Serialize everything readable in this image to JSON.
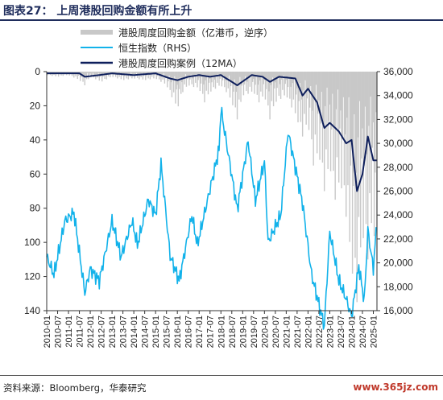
{
  "figure": {
    "title": "图表27：  上周港股回购金额有所上升",
    "source": "资料来源：Bloomberg，华泰研究",
    "watermark": "www.365jz.com"
  },
  "colors": {
    "repurchase_amount": "#c8c8c8",
    "hsi": "#12b2ea",
    "repurchase_12ma": "#0e1f5c",
    "title": "#1f2d5c"
  },
  "chart_data": {
    "type": "line",
    "title": "",
    "legend_position": "top-center",
    "grid": false,
    "x_range": [
      "2010-01",
      "2025-03"
    ],
    "x_tick_labels": [
      "2010-01",
      "2010-07",
      "2011-01",
      "2011-07",
      "2012-01",
      "2012-07",
      "2013-01",
      "2013-07",
      "2014-01",
      "2014-07",
      "2015-01",
      "2015-07",
      "2016-01",
      "2016-07",
      "2017-01",
      "2017-07",
      "2018-01",
      "2018-07",
      "2019-01",
      "2019-07",
      "2020-01",
      "2020-07",
      "2021-01",
      "2021-07",
      "2022-01",
      "2022-07",
      "2023-01",
      "2023-07",
      "2024-01",
      "2024-07",
      "2025-01"
    ],
    "left_axis": {
      "ylim": [
        0,
        140
      ],
      "inverted": true,
      "ticks": [
        0,
        20,
        40,
        60,
        80,
        100,
        120,
        140
      ],
      "tick_labels": [
        "0",
        "20",
        "40",
        "60",
        "80",
        "100",
        "120",
        "140"
      ]
    },
    "right_axis": {
      "ylim": [
        16000,
        36000
      ],
      "ticks": [
        16000,
        18000,
        20000,
        22000,
        24000,
        26000,
        28000,
        30000,
        32000,
        34000,
        36000
      ],
      "tick_labels": [
        "16,000",
        "18,000",
        "20,000",
        "22,000",
        "24,000",
        "26,000",
        "28,000",
        "30,000",
        "32,000",
        "34,000",
        "36,000"
      ]
    },
    "series": [
      {
        "name": "港股周度回购金额（亿港币，逆序）",
        "axis": "left",
        "style": "area-bars",
        "points": [
          [
            "2010-01",
            2
          ],
          [
            "2010-07",
            3
          ],
          [
            "2011-01",
            2
          ],
          [
            "2011-07",
            5
          ],
          [
            "2011-10",
            8
          ],
          [
            "2012-01",
            3
          ],
          [
            "2012-07",
            6
          ],
          [
            "2013-01",
            3
          ],
          [
            "2013-07",
            5
          ],
          [
            "2014-01",
            4
          ],
          [
            "2014-07",
            5
          ],
          [
            "2015-01",
            4
          ],
          [
            "2015-07",
            8
          ],
          [
            "2015-10",
            15
          ],
          [
            "2016-01",
            22
          ],
          [
            "2016-04",
            12
          ],
          [
            "2016-07",
            8
          ],
          [
            "2017-01",
            10
          ],
          [
            "2017-04",
            18
          ],
          [
            "2017-07",
            12
          ],
          [
            "2018-01",
            8
          ],
          [
            "2018-04",
            12
          ],
          [
            "2018-07",
            18
          ],
          [
            "2018-10",
            28
          ],
          [
            "2019-01",
            14
          ],
          [
            "2019-07",
            12
          ],
          [
            "2019-10",
            18
          ],
          [
            "2020-01",
            14
          ],
          [
            "2020-04",
            28
          ],
          [
            "2020-07",
            18
          ],
          [
            "2021-01",
            14
          ],
          [
            "2021-07",
            28
          ],
          [
            "2021-10",
            38
          ],
          [
            "2022-01",
            30
          ],
          [
            "2022-04",
            55
          ],
          [
            "2022-07",
            48
          ],
          [
            "2022-10",
            70
          ],
          [
            "2023-01",
            55
          ],
          [
            "2023-04",
            75
          ],
          [
            "2023-07",
            65
          ],
          [
            "2023-10",
            85
          ],
          [
            "2024-01",
            115
          ],
          [
            "2024-04",
            135
          ],
          [
            "2024-07",
            95
          ],
          [
            "2024-10",
            110
          ],
          [
            "2025-01",
            85
          ],
          [
            "2025-03",
            130
          ]
        ]
      },
      {
        "name": "恒生指数（RHS）",
        "axis": "right",
        "style": "line",
        "points": [
          [
            "2010-01",
            20500
          ],
          [
            "2010-05",
            19000
          ],
          [
            "2010-11",
            23500
          ],
          [
            "2011-04",
            24200
          ],
          [
            "2011-10",
            17500
          ],
          [
            "2012-01",
            19500
          ],
          [
            "2012-06",
            18500
          ],
          [
            "2013-01",
            23500
          ],
          [
            "2013-06",
            20500
          ],
          [
            "2013-12",
            23500
          ],
          [
            "2014-03",
            21500
          ],
          [
            "2014-09",
            25300
          ],
          [
            "2015-01",
            24000
          ],
          [
            "2015-04",
            28300
          ],
          [
            "2015-09",
            20600
          ],
          [
            "2016-02",
            18500
          ],
          [
            "2016-09",
            24000
          ],
          [
            "2016-12",
            21500
          ],
          [
            "2017-06",
            25500
          ],
          [
            "2017-12",
            29500
          ],
          [
            "2018-01",
            32900
          ],
          [
            "2018-10",
            24500
          ],
          [
            "2019-04",
            30200
          ],
          [
            "2019-08",
            25200
          ],
          [
            "2020-01",
            28500
          ],
          [
            "2020-03",
            21700
          ],
          [
            "2020-10",
            24000
          ],
          [
            "2021-02",
            31000
          ],
          [
            "2021-10",
            25000
          ],
          [
            "2022-03",
            19000
          ],
          [
            "2022-10",
            14700
          ],
          [
            "2023-01",
            22600
          ],
          [
            "2023-06",
            18500
          ],
          [
            "2023-10",
            17000
          ],
          [
            "2024-01",
            15500
          ],
          [
            "2024-05",
            19700
          ],
          [
            "2024-08",
            16800
          ],
          [
            "2024-10",
            22700
          ],
          [
            "2025-01",
            19500
          ],
          [
            "2025-03",
            23500
          ]
        ]
      },
      {
        "name": "港股周度回购案例（12MA）",
        "axis": "left",
        "style": "line",
        "points": [
          [
            "2010-01",
            1
          ],
          [
            "2011-07",
            1
          ],
          [
            "2011-10",
            3
          ],
          [
            "2012-06",
            2
          ],
          [
            "2013-01",
            1
          ],
          [
            "2014-01",
            2
          ],
          [
            "2015-01",
            1
          ],
          [
            "2015-09",
            4
          ],
          [
            "2016-01",
            5
          ],
          [
            "2016-07",
            3
          ],
          [
            "2017-01",
            2
          ],
          [
            "2017-07",
            3
          ],
          [
            "2018-01",
            2
          ],
          [
            "2018-10",
            8
          ],
          [
            "2019-06",
            2
          ],
          [
            "2019-12",
            3
          ],
          [
            "2020-04",
            6
          ],
          [
            "2020-09",
            3
          ],
          [
            "2021-06",
            4
          ],
          [
            "2021-10",
            14
          ],
          [
            "2022-01",
            10
          ],
          [
            "2022-06",
            18
          ],
          [
            "2022-10",
            33
          ],
          [
            "2023-01",
            30
          ],
          [
            "2023-06",
            35
          ],
          [
            "2023-10",
            42
          ],
          [
            "2024-01",
            40
          ],
          [
            "2024-04",
            70
          ],
          [
            "2024-07",
            60
          ],
          [
            "2024-10",
            38
          ],
          [
            "2025-01",
            52
          ],
          [
            "2025-03",
            52
          ]
        ]
      }
    ]
  }
}
